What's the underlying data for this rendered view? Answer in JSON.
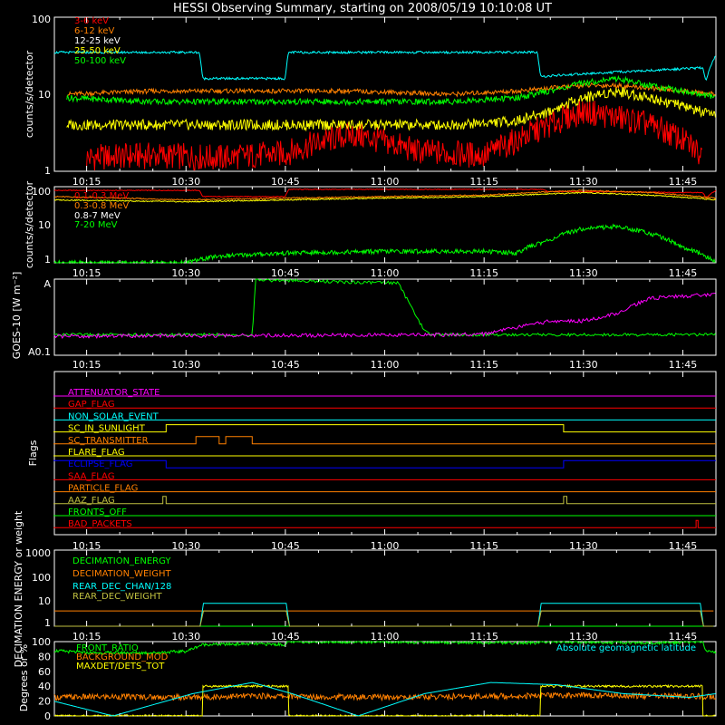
{
  "title": "HESSI Observing Summary, starting on 2008/05/19 10:10:08 UT",
  "colors": {
    "red": "#ff0000",
    "orange": "#ff8000",
    "yellow": "#ffff00",
    "green": "#00ff00",
    "cyan": "#00ffff",
    "magenta": "#ff00ff",
    "blue": "#0000ff",
    "white": "#ffffff",
    "olive": "#c0c040"
  },
  "chart_data": [
    {
      "id": "lo",
      "type": "line",
      "ylabel": "counts/s/detector",
      "yscale": "log",
      "ylim": [
        1,
        100
      ],
      "yticks": [
        "1",
        "10",
        "100"
      ],
      "xticks": [
        "10:15",
        "10:30",
        "10:45",
        "11:00",
        "11:15",
        "11:30",
        "11:45"
      ],
      "xlim_minutes": [
        10.13,
        110
      ],
      "series": [
        {
          "name": "3-6 keV",
          "color": "#ff0000",
          "x": [
            15,
            25,
            35,
            45,
            55,
            65,
            75,
            80,
            85,
            90,
            95,
            100,
            105,
            108
          ],
          "y": [
            1.5,
            1.6,
            1.5,
            1.7,
            3,
            1.8,
            1.6,
            2.5,
            4,
            6,
            5,
            4,
            2.5,
            1.6
          ]
        },
        {
          "name": "6-12 keV",
          "color": "#ff8000",
          "x": [
            12,
            25,
            40,
            55,
            70,
            80,
            85,
            90,
            95,
            100,
            110
          ],
          "y": [
            10,
            11,
            11,
            11,
            10,
            11,
            12,
            13,
            13,
            12,
            10
          ]
        },
        {
          "name": "12-25 keV",
          "color": "#ffff00",
          "x": [
            12,
            25,
            40,
            55,
            70,
            80,
            85,
            90,
            95,
            100,
            110
          ],
          "y": [
            4,
            4,
            4,
            4,
            4,
            4.5,
            6,
            9,
            11,
            9,
            5
          ]
        },
        {
          "name": "25-50 keV",
          "color": "#00ff00",
          "x": [
            12,
            25,
            40,
            55,
            70,
            80,
            85,
            90,
            95,
            100,
            110
          ],
          "y": [
            9,
            8,
            8,
            8,
            8,
            9,
            11,
            14,
            16,
            13,
            9
          ]
        },
        {
          "name": "50-100 keV",
          "color": "#00ffff",
          "x": [
            10,
            32,
            32.5,
            45,
            45.5,
            83,
            83.5,
            108,
            108.5,
            110
          ],
          "y": [
            35,
            35,
            16,
            16,
            35,
            35,
            17,
            22,
            15,
            32
          ]
        }
      ]
    },
    {
      "id": "hi",
      "type": "line",
      "ylabel": "counts/s/detector",
      "yscale": "log",
      "ylim": [
        1,
        100
      ],
      "yticks": [
        "1",
        "10",
        "100"
      ],
      "xticks": [
        "10:15",
        "10:30",
        "10:45",
        "11:00",
        "11:15",
        "11:30",
        "11:45"
      ],
      "series": [
        {
          "name": "0.1-0.3 MeV",
          "color": "#ff0000",
          "x": [
            10,
            32,
            32.5,
            45,
            45.5,
            84,
            84.5,
            108,
            108.5,
            110
          ],
          "y": [
            80,
            80,
            55,
            55,
            85,
            85,
            75,
            70,
            50,
            80
          ]
        },
        {
          "name": "0.3-0.8 MeV",
          "color": "#ff8000",
          "x": [
            10,
            30,
            45,
            60,
            75,
            90,
            100,
            110
          ],
          "y": [
            55,
            45,
            50,
            55,
            60,
            80,
            70,
            50
          ]
        },
        {
          "name": "0.8-7 MeV",
          "color": "#ffff00",
          "x": [
            10,
            30,
            45,
            60,
            75,
            90,
            100,
            110
          ],
          "y": [
            45,
            40,
            45,
            50,
            55,
            70,
            60,
            45
          ]
        },
        {
          "name": "7-20 MeV",
          "color": "#00ff00",
          "x": [
            10,
            30,
            35,
            45,
            60,
            75,
            80,
            85,
            90,
            95,
            100,
            105,
            110
          ],
          "y": [
            1,
            1,
            1.5,
            1.8,
            2,
            2,
            1.8,
            4,
            8,
            9,
            6,
            2.5,
            1
          ]
        }
      ]
    },
    {
      "id": "goes",
      "type": "line",
      "ylabel": "GOES-10 [W m⁻²]",
      "ytick_top": "A",
      "ytick_bottom": "A0.1",
      "xticks": [
        "10:15",
        "10:30",
        "10:45",
        "11:00",
        "11:15",
        "11:30",
        "11:45"
      ],
      "series": [
        {
          "name": "GOES green",
          "color": "#00ff00",
          "x": [
            10,
            40,
            40.5,
            45,
            55,
            62,
            66,
            67,
            110
          ],
          "y": [
            0.73,
            0.73,
            0.01,
            0.02,
            0.04,
            0.05,
            0.68,
            0.73,
            0.73
          ]
        },
        {
          "name": "GOES magenta",
          "color": "#ff00ff",
          "x": [
            10,
            70,
            75,
            85,
            90,
            95,
            100,
            110
          ],
          "y": [
            0.75,
            0.73,
            0.72,
            0.55,
            0.55,
            0.45,
            0.25,
            0.2
          ]
        }
      ]
    },
    {
      "id": "flags",
      "type": "line",
      "ylabel": "Flags",
      "xticks": [
        "10:15",
        "10:30",
        "10:45",
        "11:00",
        "11:15",
        "11:30",
        "11:45"
      ],
      "series": [
        {
          "name": "ATTENUATOR_STATE",
          "color": "#ff00ff",
          "x": [
            10,
            110
          ],
          "y": [
            0,
            0
          ]
        },
        {
          "name": "GAP_FLAG",
          "color": "#ff0000",
          "x": [
            10,
            110
          ],
          "y": [
            0,
            0
          ]
        },
        {
          "name": "NON_SOLAR_EVENT",
          "color": "#00ffff",
          "x": [
            10,
            110
          ],
          "y": [
            0,
            0
          ]
        },
        {
          "name": "SC_IN_SUNLIGHT",
          "color": "#ffff00",
          "x": [
            10,
            27,
            27,
            87,
            87,
            110
          ],
          "y": [
            0,
            0,
            1,
            1,
            0,
            0
          ]
        },
        {
          "name": "SC_TRANSMITTER",
          "color": "#ff8000",
          "x": [
            10,
            31.5,
            31.5,
            35,
            35,
            36,
            36,
            40,
            40,
            110
          ],
          "y": [
            0,
            0,
            1,
            1,
            0,
            0,
            1,
            1,
            0,
            0
          ]
        },
        {
          "name": "FLARE_FLAG",
          "color": "#ffff00",
          "x": [
            10,
            110
          ],
          "y": [
            0,
            0
          ]
        },
        {
          "name": "ECLIPSE_FLAG",
          "color": "#0000ff",
          "x": [
            10,
            27,
            27,
            87,
            87,
            110
          ],
          "y": [
            1,
            1,
            0,
            0,
            1,
            1
          ]
        },
        {
          "name": "SAA_FLAG",
          "color": "#ff0000",
          "x": [
            10,
            110
          ],
          "y": [
            0,
            0
          ]
        },
        {
          "name": "PARTICLE_FLAG",
          "color": "#ff8000",
          "x": [
            10,
            110
          ],
          "y": [
            0,
            0
          ]
        },
        {
          "name": "AAZ_FLAG",
          "color": "#c0c040",
          "x": [
            10,
            26.5,
            26.5,
            27,
            27,
            87,
            87,
            87.5,
            87.5,
            110
          ],
          "y": [
            0,
            0,
            1,
            1,
            0,
            0,
            1,
            1,
            0,
            0
          ]
        },
        {
          "name": "FRONTS_OFF",
          "color": "#00ff00",
          "x": [
            10,
            110
          ],
          "y": [
            0,
            0
          ]
        },
        {
          "name": "BAD_PACKETS",
          "color": "#ff0000",
          "x": [
            10,
            107,
            107,
            107.3,
            107.3,
            110
          ],
          "y": [
            0,
            0,
            1,
            1,
            0,
            0
          ]
        }
      ]
    },
    {
      "id": "dec",
      "type": "line",
      "ylabel": "DECIMATION ENERGY or weight",
      "yscale": "log",
      "ylim": [
        1,
        1000
      ],
      "yticks": [
        "1",
        "10",
        "100",
        "1000"
      ],
      "xticks": [
        "10:15",
        "10:30",
        "10:45",
        "11:00",
        "11:15",
        "11:30",
        "11:45"
      ],
      "series": [
        {
          "name": "DECIMATION_ENERGY",
          "color": "#00ff00",
          "x": [
            10,
            110
          ],
          "y": [
            1,
            1
          ]
        },
        {
          "name": "DECIMATION_WEIGHT",
          "color": "#ff8000",
          "x": [
            10,
            110
          ],
          "y": [
            4,
            4
          ]
        },
        {
          "name": "REAR_DEC_CHAN/128",
          "color": "#00ffff",
          "x": [
            10,
            32.5,
            32.5,
            45.5,
            45.5,
            83.5,
            83.5,
            108,
            108,
            110
          ],
          "y": [
            1,
            1,
            8,
            8,
            1,
            1,
            8,
            8,
            1,
            1
          ]
        },
        {
          "name": "REAR_DEC_WEIGHT",
          "color": "#c0c040",
          "x": [
            10,
            32.5,
            32.5,
            45.5,
            45.5,
            83.5,
            83.5,
            108,
            108,
            110
          ],
          "y": [
            1,
            1,
            4,
            4,
            1,
            1,
            4,
            4,
            1,
            1
          ]
        }
      ]
    },
    {
      "id": "ratio",
      "type": "line",
      "ylabel": "Degrees or %",
      "ylim": [
        0,
        100
      ],
      "yticks": [
        "0",
        "20",
        "40",
        "60",
        "80",
        "100"
      ],
      "xticks": [
        "10:15",
        "10:30",
        "10:45",
        "11:00",
        "11:15",
        "11:30",
        "11:45"
      ],
      "annotation": "Absolute geomagnetic latitude",
      "series": [
        {
          "name": "FRONT_RATIO",
          "color": "#00ff00",
          "x": [
            10,
            15,
            25,
            30,
            32.5,
            40,
            45,
            45.5,
            70,
            83,
            83.5,
            100,
            108,
            108.5,
            110
          ],
          "y": [
            88,
            85,
            85,
            87,
            96,
            97,
            96,
            100,
            99,
            98,
            100,
            98,
            100,
            88,
            85
          ]
        },
        {
          "name": "BACKGROUND_MOD",
          "color": "#ff8000",
          "x": [
            10,
            20,
            30,
            40,
            50,
            60,
            70,
            80,
            90,
            100,
            110
          ],
          "y": [
            25,
            26,
            25,
            27,
            26,
            25,
            26,
            27,
            28,
            27,
            26
          ]
        },
        {
          "name": "MAXDET/DETS_TOT",
          "color": "#ffff00",
          "x": [
            10,
            32.5,
            32.5,
            45.5,
            45.5,
            83.5,
            83.5,
            108,
            108,
            110
          ],
          "y": [
            0,
            0,
            40,
            40,
            0,
            0,
            40,
            40,
            0,
            0
          ]
        },
        {
          "name": "Absolute geomagnetic latitude",
          "color": "#00ffff",
          "x": [
            10,
            19,
            31,
            40,
            46,
            56,
            66,
            76,
            86,
            96,
            106,
            110
          ],
          "y": [
            20,
            0,
            30,
            45,
            30,
            0,
            30,
            45,
            42,
            30,
            25,
            30
          ]
        }
      ]
    }
  ]
}
